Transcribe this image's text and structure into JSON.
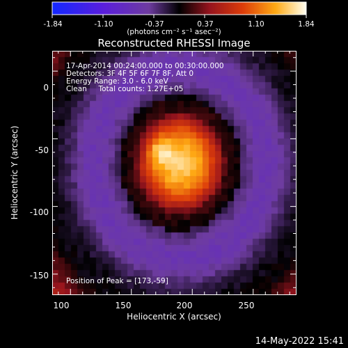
{
  "colorbar": {
    "ticks": [
      "-1.84",
      "-1.10",
      "-0.37",
      "0.37",
      "1.10",
      "1.84"
    ],
    "unit_label": "(photons cm⁻² s⁻¹ asec⁻²)",
    "range": [
      -1.84,
      1.84
    ]
  },
  "chart_data": {
    "type": "heatmap",
    "title": "Reconstructed RHESSI Image",
    "xlabel": "Heliocentric X (arcsec)",
    "ylabel": "Heliocentric Y (arcsec)",
    "xlim": [
      85,
      285
    ],
    "ylim": [
      -165,
      15
    ],
    "xticks": [
      "100",
      "150",
      "200",
      "250"
    ],
    "yticks": [
      "0",
      "-50",
      "-100",
      "-150"
    ],
    "peak": [
      173,
      -59
    ],
    "ring_radius_arcsec": 63,
    "core_radius_arcsec": 38,
    "annotations": [
      "17-Apr-2014 00:24:00.000 to 00:30:00.000",
      "Detectors: 3F 4F 5F 6F 7F 8F, Att 0",
      "Energy Range: 3.0 - 6.0 keV",
      "Clean     Total counts: 1.27E+05"
    ],
    "peak_label": "Position of Peak = [173,-59]"
  },
  "footer": {
    "timestamp": "14-May-2022 15:41"
  }
}
